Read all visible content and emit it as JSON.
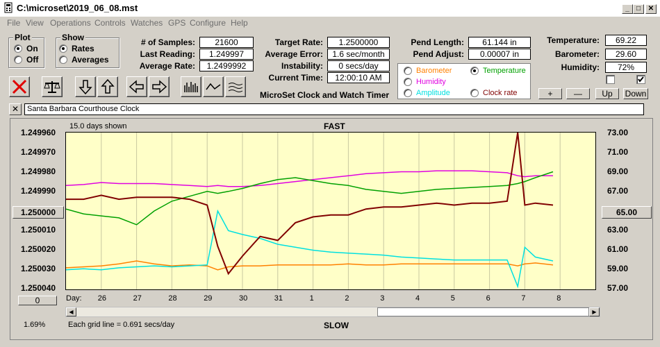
{
  "window": {
    "title": "C:\\microset\\2019_06_08.mst"
  },
  "menu": [
    "File",
    "View",
    "Operations",
    "Controls",
    "Watches",
    "GPS",
    "Configure",
    "Help"
  ],
  "plot_group": {
    "title": "Plot",
    "on": "On",
    "off": "Off",
    "selected": "On"
  },
  "show_group": {
    "title": "Show",
    "rates": "Rates",
    "averages": "Averages",
    "selected": "Rates"
  },
  "stats": {
    "samples_label": "# of Samples:",
    "samples": "21600",
    "last_label": "Last Reading:",
    "last": "1.249997",
    "avg_label": "Average Rate:",
    "avg": "1.2499992",
    "target_label": "Target Rate:",
    "target": "1.2500000",
    "avgerr_label": "Average Error:",
    "avgerr": "1.6 sec/month",
    "instab_label": "Instability:",
    "instab": "0 secs/day",
    "time_label": "Current Time:",
    "time": "12:00:10 AM",
    "product": "MicroSet Clock and Watch Timer",
    "pendlen_label": "Pend Length:",
    "pendlen": "61.144 in",
    "pendadj_label": "Pend Adjust:",
    "pendadj": "0.00007 in",
    "temp_label": "Temperature:",
    "temp": "69.22",
    "baro_label": "Barometer:",
    "baro": "29.60",
    "hum_label": "Humidity:",
    "hum": "72%"
  },
  "legend": {
    "barometer": "Barometer",
    "temperature": "Temperature",
    "humidity": "Humidity",
    "amplitude": "Amplitude",
    "clock_rate": "Clock rate",
    "selected": "Temperature",
    "colors": {
      "barometer": "#ff8000",
      "temperature": "#00a000",
      "humidity": "#e000e0",
      "amplitude": "#00e0e0",
      "clock_rate": "#800000"
    }
  },
  "controls": {
    "plus": "+",
    "minus": "—",
    "up": "Up",
    "down": "Down",
    "close": "✕"
  },
  "clock_name": "Santa Barbara Courthouse Clock",
  "chart_header": {
    "days_shown": "15.0 days shown",
    "fast": "FAST",
    "slow": "SLOW",
    "grid_note": "Each grid line = 0.691 secs/day",
    "pct": "1.69%",
    "day_label": "Day:",
    "center_left": "1.250000",
    "center_right": "65.00",
    "offset_btn": "0"
  },
  "toolbar_icons": [
    "reset-icon",
    "balance-icon",
    "arrow-down-icon",
    "arrow-up-icon",
    "arrow-left-icon",
    "arrow-right-icon",
    "bars-icon",
    "wave-icon",
    "smooth-icon"
  ],
  "chart_data": {
    "type": "line",
    "x_ticks": [
      "26",
      "27",
      "28",
      "29",
      "30",
      "31",
      "1",
      "2",
      "3",
      "4",
      "5",
      "6",
      "7",
      "8"
    ],
    "y_left": [
      "1.249960",
      "1.249970",
      "1.249980",
      "1.249990",
      "1.250010",
      "1.250020",
      "1.250030",
      "1.250040"
    ],
    "y_right": [
      "73.00",
      "71.00",
      "69.00",
      "67.00",
      "63.00",
      "61.00",
      "59.00",
      "57.00"
    ],
    "ylim_left": [
      1.24996,
      1.25004
    ],
    "ylim_right": [
      57,
      73
    ],
    "x_days": [
      25.0,
      25.5,
      26.0,
      26.5,
      27.0,
      27.5,
      28.0,
      28.5,
      29.0,
      29.3,
      29.6,
      30.0,
      30.5,
      31.0,
      31.5,
      32.0,
      32.5,
      33.0,
      33.5,
      34.0,
      34.5,
      35.0,
      35.5,
      36.0,
      36.5,
      37.0,
      37.5,
      37.8,
      38.0,
      38.3,
      38.8
    ],
    "series": [
      {
        "name": "Clock rate",
        "color": "#800000",
        "axis": "left",
        "values": [
          1.249994,
          1.249994,
          1.249992,
          1.249994,
          1.249993,
          1.249993,
          1.249993,
          1.249994,
          1.249997,
          1.250018,
          1.250032,
          1.250023,
          1.250013,
          1.250015,
          1.250006,
          1.250003,
          1.250002,
          1.250002,
          1.249999,
          1.249998,
          1.249998,
          1.249997,
          1.249996,
          1.249997,
          1.249996,
          1.249996,
          1.249995,
          1.24996,
          1.249997,
          1.249996,
          1.249997
        ]
      },
      {
        "name": "Temperature",
        "color": "#00a000",
        "axis": "right",
        "values": [
          65.2,
          64.7,
          64.5,
          64.3,
          63.6,
          65.0,
          66.0,
          66.5,
          67.0,
          66.8,
          67.0,
          67.3,
          67.8,
          68.2,
          68.4,
          68.1,
          67.8,
          67.6,
          67.2,
          67.0,
          66.8,
          67.0,
          67.2,
          67.3,
          67.4,
          67.5,
          67.6,
          67.8,
          68.0,
          68.4,
          69.0
        ]
      },
      {
        "name": "Humidity",
        "color": "#e000e0",
        "axis": "right",
        "values": [
          67.6,
          67.7,
          67.9,
          67.8,
          67.8,
          67.8,
          67.7,
          67.6,
          67.5,
          67.6,
          67.5,
          67.5,
          67.6,
          67.8,
          68.0,
          68.2,
          68.4,
          68.6,
          68.8,
          68.9,
          69.0,
          69.0,
          69.1,
          69.1,
          69.1,
          69.0,
          68.9,
          68.6,
          68.5,
          68.6,
          68.6
        ]
      },
      {
        "name": "Amplitude",
        "color": "#00e0e0",
        "axis": "right",
        "values": [
          59.0,
          59.1,
          59.0,
          59.2,
          59.3,
          59.4,
          59.3,
          59.4,
          59.5,
          65.0,
          63.0,
          62.6,
          62.2,
          61.6,
          61.3,
          61.0,
          60.8,
          60.7,
          60.6,
          60.5,
          60.3,
          60.2,
          60.1,
          60.0,
          60.0,
          60.0,
          60.0,
          57.3,
          61.3,
          60.3,
          59.9
        ]
      },
      {
        "name": "Barometer",
        "color": "#ff8000",
        "axis": "right",
        "values": [
          59.2,
          59.3,
          59.4,
          59.6,
          59.9,
          59.6,
          59.4,
          59.5,
          59.4,
          59.0,
          59.3,
          59.4,
          59.4,
          59.5,
          59.5,
          59.5,
          59.5,
          59.6,
          59.5,
          59.5,
          59.6,
          59.6,
          59.6,
          59.6,
          59.6,
          59.6,
          59.6,
          59.4,
          59.6,
          59.7,
          59.5
        ]
      }
    ]
  }
}
